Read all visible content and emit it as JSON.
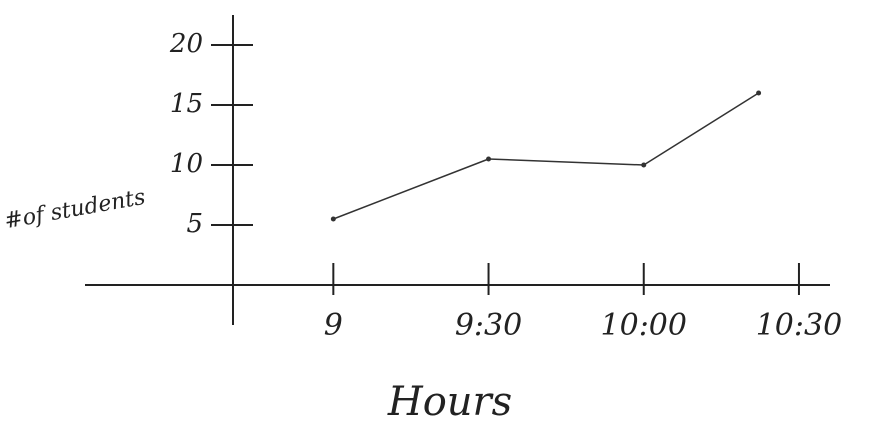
{
  "chart_data": {
    "type": "line",
    "y_label": "#of students",
    "x_label": "Hours",
    "x": [
      9,
      9.5,
      10,
      10.37
    ],
    "values": [
      5.5,
      10.5,
      10,
      16
    ],
    "color": "#333333",
    "xlim": [
      8.2,
      10.6
    ],
    "xticks": [
      {
        "value": 9,
        "label": "9"
      },
      {
        "value": 9.5,
        "label": "9:30"
      },
      {
        "value": 10,
        "label": "10:00"
      },
      {
        "value": 10.5,
        "label": "10:30"
      }
    ],
    "ylim": [
      0,
      22
    ],
    "yticks": [
      5,
      10,
      15,
      20
    ]
  }
}
